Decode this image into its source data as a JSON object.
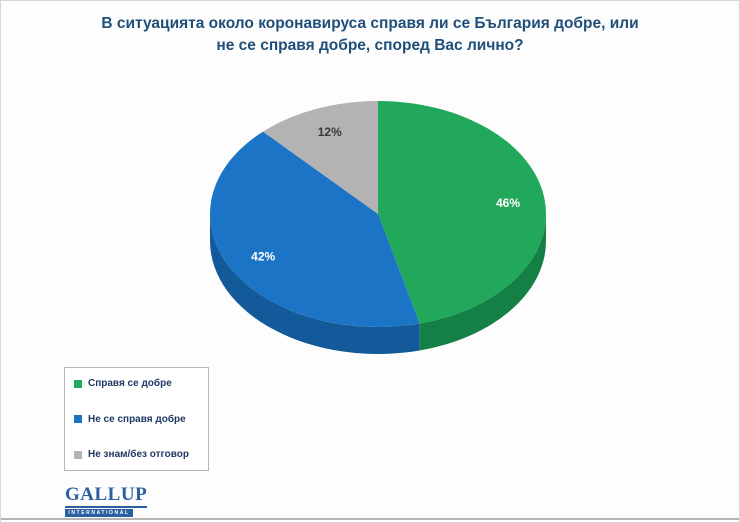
{
  "title": {
    "line1": "В ситуацията около коронавируса справя ли се България добре, или",
    "line2": "не се справя добре, според Вас лично?"
  },
  "chart_data": {
    "type": "pie",
    "labels": [
      "Справя се добре",
      "Не се справя добре",
      "Не знам/без отговор"
    ],
    "values": [
      46,
      42,
      12
    ],
    "data_labels": [
      "46%",
      "42%",
      "12%"
    ],
    "colors": [
      "#21a85a",
      "#1b74c5",
      "#b3b3b3"
    ],
    "side_colors": [
      "#158045",
      "#125a99",
      "#8c8c8c"
    ],
    "label_colors": [
      "#ffffff",
      "#ffffff",
      "#3a3a3a"
    ],
    "start_angle_deg": 0,
    "direction": "clockwise",
    "effect": "3d",
    "legend_position": "bottom-left",
    "title": "В ситуацията около коронавируса справя ли се България добре, или не се справя добре, според Вас лично?"
  },
  "branding": {
    "name": "GALLUP",
    "subtitle": "INTERNATIONAL"
  }
}
